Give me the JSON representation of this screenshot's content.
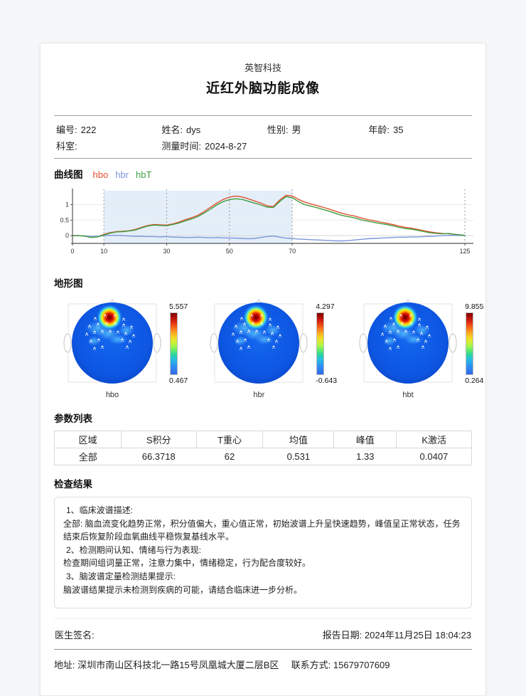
{
  "page": {
    "company": "英智科技",
    "report_title": "近红外脑功能成像"
  },
  "patient": {
    "fields": [
      {
        "label": "编号:",
        "value": "222"
      },
      {
        "label": "姓名:",
        "value": "dys"
      },
      {
        "label": "性别:",
        "value": "男"
      },
      {
        "label": "年龄:",
        "value": "35"
      },
      {
        "label": "科室:",
        "value": ""
      },
      {
        "label": "测量时间:",
        "value": "2024-8-27"
      }
    ]
  },
  "curve_section": {
    "title": "曲线图"
  },
  "chart_data": {
    "type": "line",
    "title": "曲线图",
    "xlabel": "",
    "ylabel": "",
    "xlim": [
      -4,
      128
    ],
    "ylim": [
      -0.25,
      1.45
    ],
    "xticks": [
      0,
      10,
      30,
      50,
      70,
      125
    ],
    "yticks": [
      0,
      0.5,
      1
    ],
    "shaded_region": [
      10,
      70
    ],
    "shade_color": "#e4eef9",
    "grid": "horizontal-light",
    "legend_position": "top-left",
    "x": [
      0,
      2,
      4,
      6,
      8,
      10,
      12,
      14,
      16,
      18,
      20,
      22,
      24,
      26,
      28,
      30,
      32,
      34,
      36,
      38,
      40,
      42,
      44,
      46,
      48,
      50,
      52,
      54,
      56,
      58,
      60,
      62,
      64,
      66,
      68,
      70,
      72,
      74,
      76,
      78,
      80,
      82,
      84,
      86,
      88,
      90,
      92,
      94,
      96,
      98,
      100,
      102,
      104,
      106,
      108,
      110,
      112,
      114,
      116,
      118,
      120,
      122,
      125
    ],
    "series": [
      {
        "name": "hbo",
        "color": "#e0502f",
        "values": [
          0,
          0,
          -0.01,
          -0.05,
          -0.03,
          0.04,
          0.1,
          0.13,
          0.14,
          0.16,
          0.2,
          0.27,
          0.33,
          0.36,
          0.35,
          0.34,
          0.38,
          0.44,
          0.52,
          0.58,
          0.66,
          0.78,
          0.92,
          1.05,
          1.17,
          1.24,
          1.28,
          1.25,
          1.19,
          1.12,
          1.05,
          0.96,
          0.94,
          1.15,
          1.3,
          1.28,
          1.17,
          1.08,
          1.02,
          0.97,
          0.91,
          0.85,
          0.78,
          0.72,
          0.67,
          0.63,
          0.57,
          0.52,
          0.48,
          0.44,
          0.4,
          0.36,
          0.31,
          0.27,
          0.24,
          0.2,
          0.16,
          0.12,
          0.09,
          0.07,
          0.06,
          0.04,
          0.01
        ]
      },
      {
        "name": "hbr",
        "color": "#7b96dc",
        "values": [
          0,
          0,
          -0.01,
          -0.03,
          -0.02,
          0,
          0.01,
          0.01,
          0,
          -0.01,
          -0.02,
          -0.02,
          -0.03,
          -0.03,
          -0.04,
          -0.03,
          -0.05,
          -0.05,
          -0.06,
          -0.06,
          -0.05,
          -0.06,
          -0.07,
          -0.06,
          -0.07,
          -0.08,
          -0.08,
          -0.09,
          -0.1,
          -0.09,
          -0.06,
          -0.03,
          -0.01,
          -0.05,
          -0.08,
          -0.09,
          -0.11,
          -0.12,
          -0.13,
          -0.14,
          -0.15,
          -0.16,
          -0.17,
          -0.17,
          -0.16,
          -0.14,
          -0.12,
          -0.1,
          -0.09,
          -0.08,
          -0.07,
          -0.06,
          -0.05,
          -0.05,
          -0.04,
          -0.04,
          -0.03,
          -0.02,
          -0.01,
          0,
          0.01,
          0.01,
          0
        ]
      },
      {
        "name": "hbT",
        "color": "#3f9e3f",
        "values": [
          0,
          0,
          -0.02,
          -0.06,
          -0.04,
          0.02,
          0.08,
          0.12,
          0.13,
          0.15,
          0.18,
          0.25,
          0.31,
          0.34,
          0.33,
          0.32,
          0.36,
          0.41,
          0.48,
          0.54,
          0.62,
          0.73,
          0.86,
          0.99,
          1.1,
          1.16,
          1.19,
          1.17,
          1.11,
          1.05,
          0.99,
          0.92,
          0.91,
          1.1,
          1.26,
          1.22,
          1.1,
          1.0,
          0.95,
          0.9,
          0.84,
          0.78,
          0.71,
          0.65,
          0.61,
          0.57,
          0.51,
          0.47,
          0.43,
          0.39,
          0.36,
          0.32,
          0.27,
          0.23,
          0.21,
          0.17,
          0.13,
          0.09,
          0.07,
          0.06,
          0.07,
          0.04,
          0.01
        ]
      }
    ]
  },
  "topo_section": {
    "title": "地形图",
    "maps": [
      {
        "label": "hbo",
        "max": "5.557",
        "min": "0.467"
      },
      {
        "label": "hbr",
        "max": "4.297",
        "min": "-0.643"
      },
      {
        "label": "hbt",
        "max": "9.855",
        "min": "0.264"
      }
    ]
  },
  "params_section": {
    "title": "参数列表",
    "headers": [
      "区域",
      "S积分",
      "T重心",
      "均值",
      "峰值",
      "K激活"
    ],
    "rows": [
      [
        "全部",
        "66.3718",
        "62",
        "0.531",
        "1.33",
        "0.0407"
      ]
    ]
  },
  "results_section": {
    "title": "检查结果",
    "lines": [
      "1、临床波谱描述:",
      "全部: 脑血流变化趋势正常，积分值偏大，重心值正常，初始波谱上升呈快速趋势，峰值呈正常状态，任务结束后恢复阶段血氧曲线平稳恢复基线水平。",
      "2、检测期间认知、情绪与行为表现:",
      "检查期间组词量正常，注意力集中，情绪稳定，行为配合度较好。",
      "3、脑波谱定量检测结果提示:",
      "脑波谱结果提示未检测到疾病的可能，请结合临床进一步分析。"
    ]
  },
  "footer": {
    "signature_label": "医生签名:",
    "report_date_label": "报告日期:",
    "report_date": "2024年11月25日 18:04:23",
    "address_label": "地址:",
    "address": "深圳市南山区科技北一路15号凤凰城大厦二层B区",
    "contact_label": "联系方式:",
    "contact": "15679707609"
  }
}
